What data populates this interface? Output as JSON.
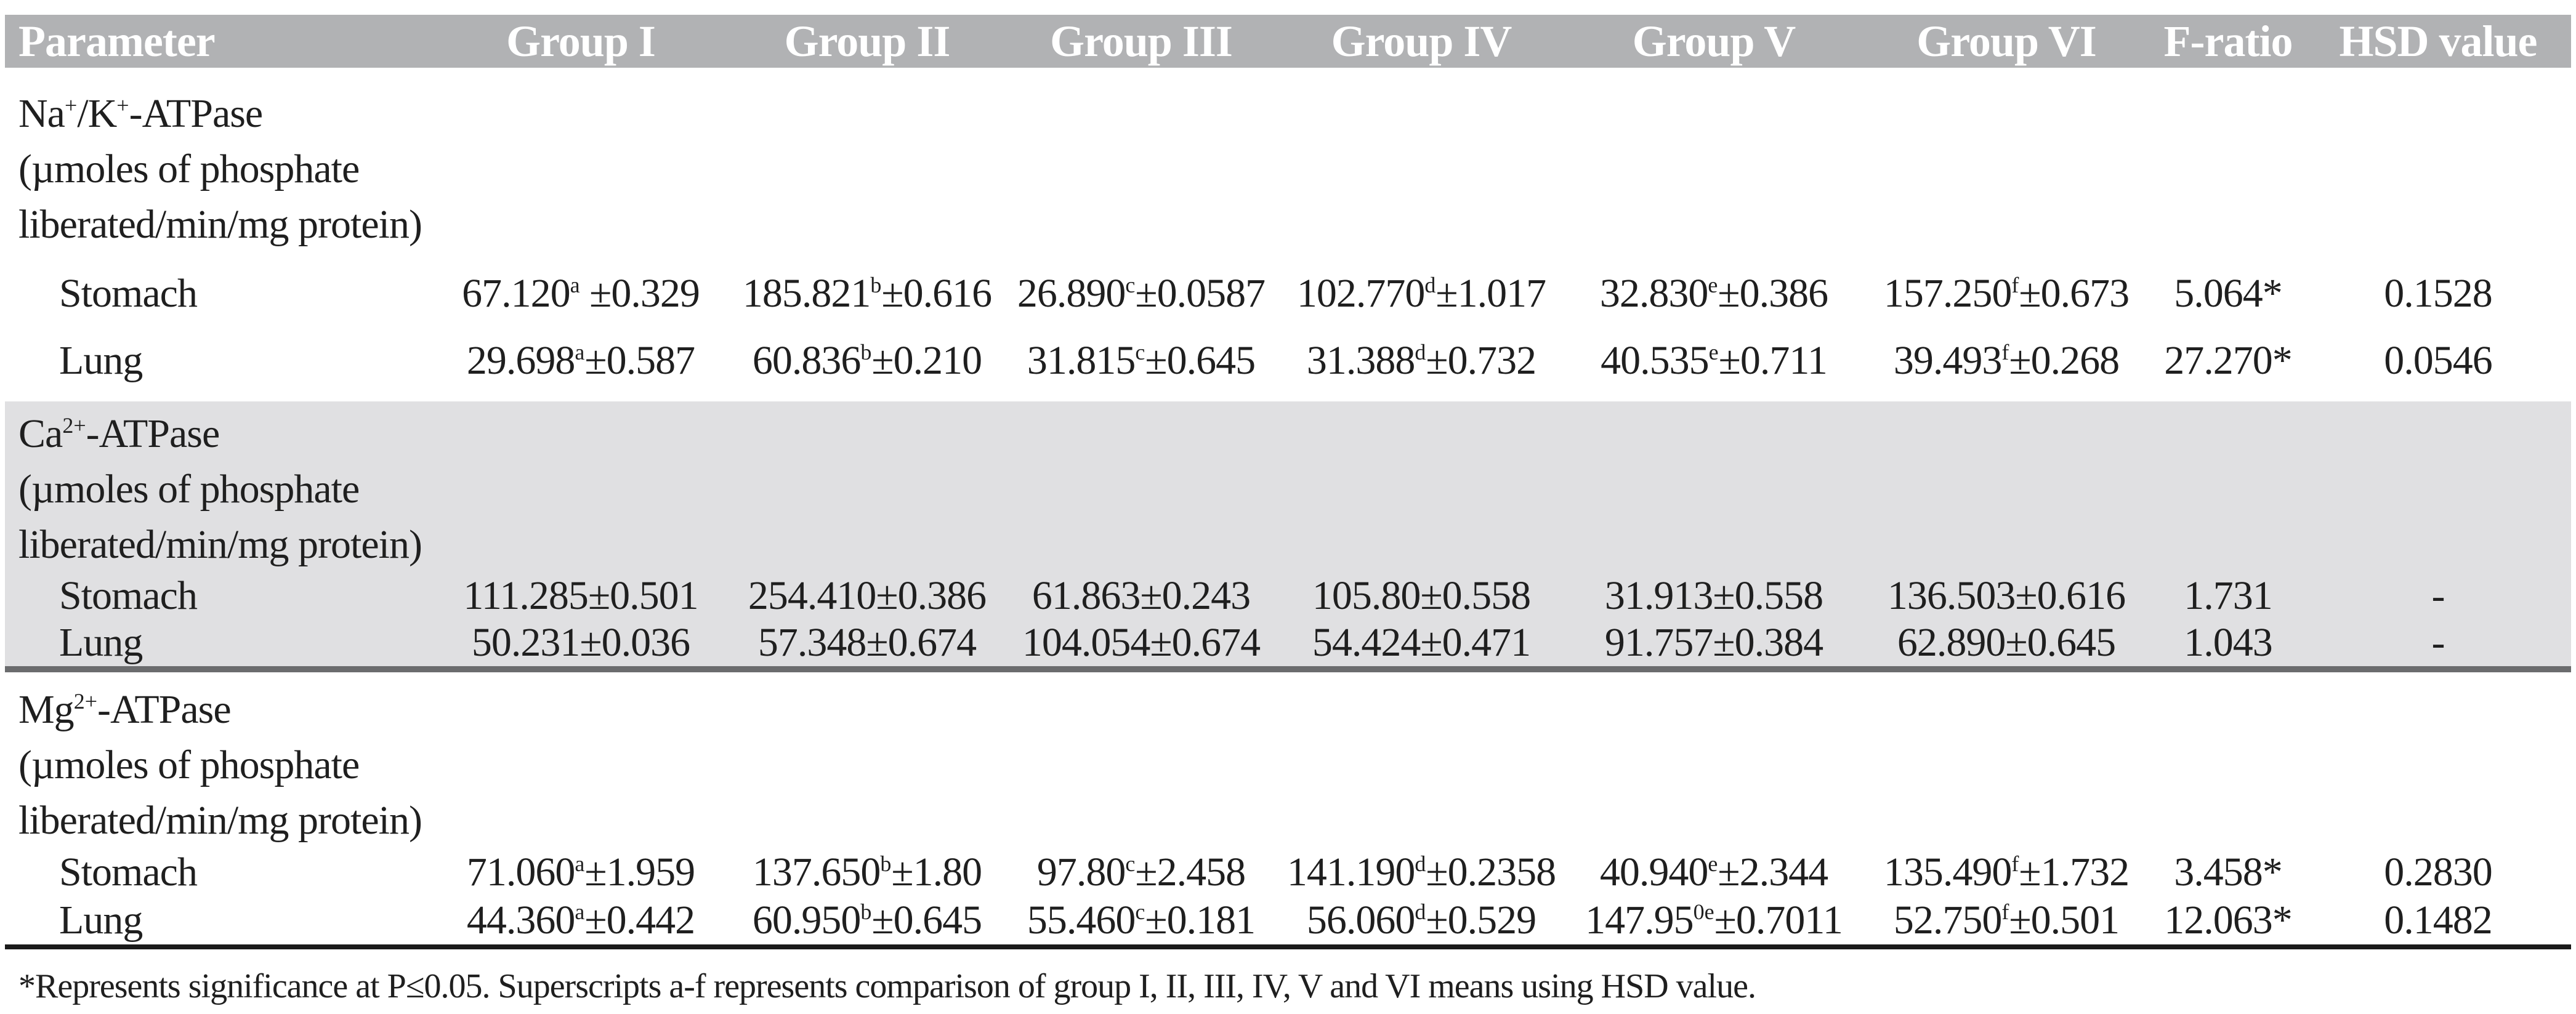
{
  "colors": {
    "header_bg": "#b1b2b4",
    "header_text": "#ffffff",
    "shaded_section_bg": "#e0e0e2",
    "section_rule_gray": "#6b6c6e",
    "bottom_rule_black": "#1a1a1a",
    "body_text": "#1f1f1f"
  },
  "columns": {
    "parameter": "Parameter",
    "g1": "Group I",
    "g2": "Group II",
    "g3": "Group III",
    "g4": "Group IV",
    "g5": "Group V",
    "g6": "Group VI",
    "f": "F-ratio",
    "hsd": "HSD value"
  },
  "sections": [
    {
      "formula": {
        "p1": "Na",
        "s1": "+",
        "p2": "/K",
        "s2": "+",
        "p3": "-ATPase"
      },
      "unit1": "(µmoles of phosphate",
      "unit2": "liberated/min/mg protein)",
      "rows": [
        {
          "tissue": "Stomach",
          "cells": [
            {
              "val": "67.120",
              "sup": "a",
              "err": " ±0.329"
            },
            {
              "val": "185.821",
              "sup": "b",
              "err": "±0.616"
            },
            {
              "val": "26.890",
              "sup": "c",
              "err": "±0.0587"
            },
            {
              "val": "102.770",
              "sup": "d",
              "err": "±1.017"
            },
            {
              "val": "32.830",
              "sup": "e",
              "err": "±0.386"
            },
            {
              "val": "157.250",
              "sup": "f",
              "err": "±0.673"
            }
          ],
          "f": "5.064*",
          "hsd": "0.1528"
        },
        {
          "tissue": "Lung",
          "cells": [
            {
              "val": "29.698",
              "sup": "a",
              "err": "±0.587"
            },
            {
              "val": "60.836",
              "sup": "b",
              "err": "±0.210"
            },
            {
              "val": "31.815",
              "sup": "c",
              "err": "±0.645"
            },
            {
              "val": "31.388",
              "sup": "d",
              "err": "±0.732"
            },
            {
              "val": "40.535",
              "sup": "e",
              "err": "±0.711"
            },
            {
              "val": "39.493",
              "sup": "f",
              "err": "±0.268"
            }
          ],
          "f": "27.270*",
          "hsd": "0.0546"
        }
      ]
    },
    {
      "formula": {
        "p1": "Ca",
        "s1": "2+",
        "p2": "-ATPase"
      },
      "unit1": "(µmoles of phosphate",
      "unit2": "liberated/min/mg protein)",
      "rows": [
        {
          "tissue": "Stomach",
          "cells": [
            {
              "val": "111.285",
              "err": "±0.501"
            },
            {
              "val": "254.410",
              "err": "±0.386"
            },
            {
              "val": "61.863",
              "err": "±0.243"
            },
            {
              "val": "105.80",
              "err": "±0.558"
            },
            {
              "val": "31.913",
              "err": "±0.558"
            },
            {
              "val": "136.503",
              "err": "±0.616"
            }
          ],
          "f": "1.731",
          "hsd": "-"
        },
        {
          "tissue": "Lung",
          "cells": [
            {
              "val": "50.231",
              "err": "±0.036"
            },
            {
              "val": "57.348",
              "err": "±0.674"
            },
            {
              "val": "104.054",
              "err": "±0.674"
            },
            {
              "val": "54.424",
              "err": "±0.471"
            },
            {
              "val": "91.757",
              "err": "±0.384"
            },
            {
              "val": "62.890",
              "err": "±0.645"
            }
          ],
          "f": "1.043",
          "hsd": "-"
        }
      ]
    },
    {
      "formula": {
        "p1": "Mg",
        "s1": "2+",
        "p2": "-ATPase"
      },
      "unit1": "(µmoles of phosphate",
      "unit2": "liberated/min/mg protein)",
      "rows": [
        {
          "tissue": "Stomach",
          "cells": [
            {
              "val": "71.060",
              "sup": "a",
              "err": "±1.959"
            },
            {
              "val": "137.650",
              "sup": "b",
              "err": "±1.80"
            },
            {
              "val": "97.80",
              "sup": "c",
              "err": "±2.458"
            },
            {
              "val": "141.190",
              "sup": "d",
              "err": "±0.2358"
            },
            {
              "val": "40.940",
              "sup": "e",
              "err": "±2.344"
            },
            {
              "val": "135.490",
              "sup": "f",
              "err": "±1.732"
            }
          ],
          "f": "3.458*",
          "hsd": "0.2830"
        },
        {
          "tissue": "Lung",
          "cells": [
            {
              "val": "44.360",
              "sup": "a",
              "err": "±0.442"
            },
            {
              "val": "60.950",
              "sup": "b",
              "err": "±0.645"
            },
            {
              "val": "55.460",
              "sup": "c",
              "err": "±0.181"
            },
            {
              "val": "56.060",
              "sup": "d",
              "err": "±0.529"
            },
            {
              "val": "147.95",
              "sup": "0e",
              "err": "±0.7011"
            },
            {
              "val": "52.750",
              "sup": "f",
              "err": "±0.501"
            }
          ],
          "f": "12.063*",
          "hsd": "0.1482"
        }
      ]
    }
  ],
  "footnote": "*Represents significance at P≤0.05. Superscripts a-f represents comparison of group I, II, III, IV, V and VI means using HSD value."
}
